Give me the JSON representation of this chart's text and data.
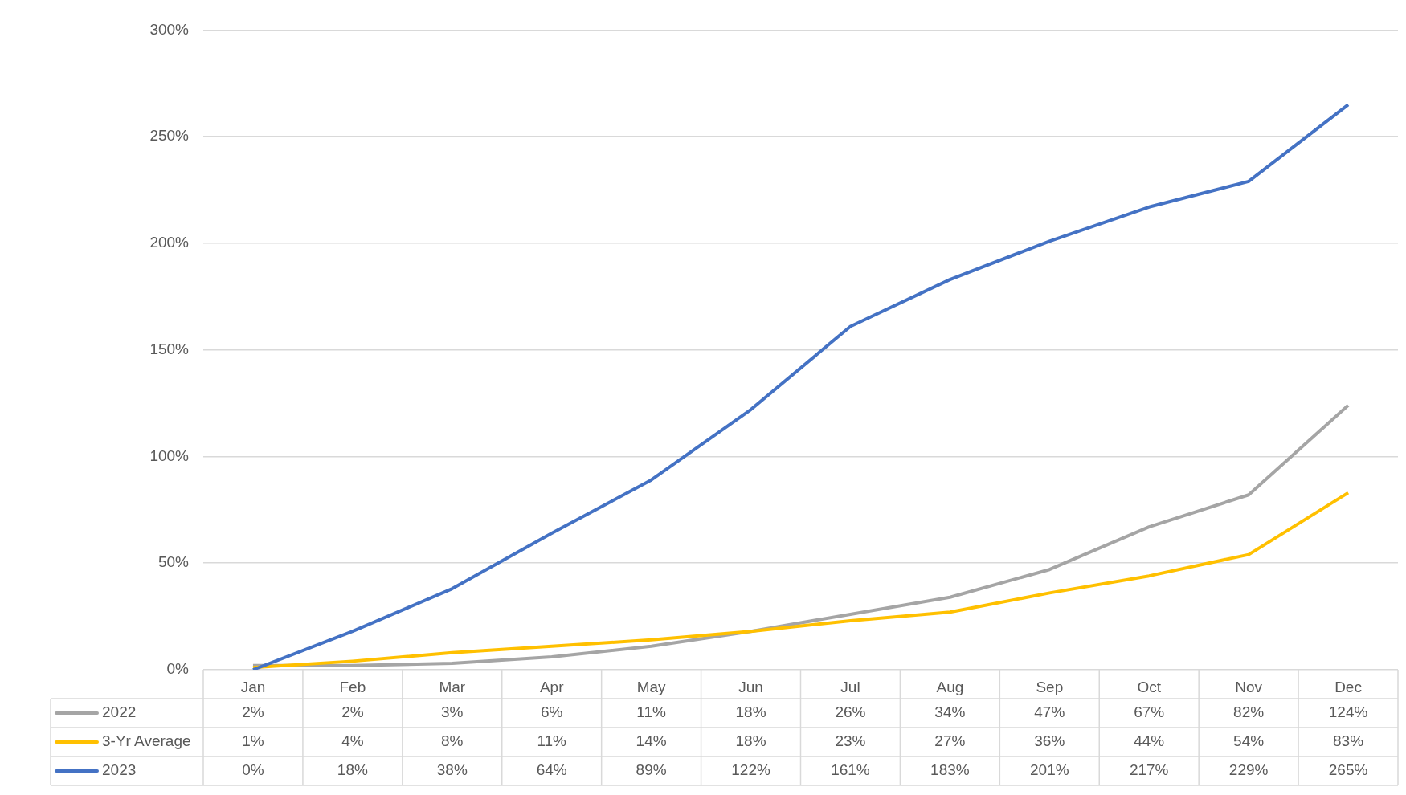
{
  "chart_data": {
    "type": "line",
    "categories": [
      "Jan",
      "Feb",
      "Mar",
      "Apr",
      "May",
      "Jun",
      "Jul",
      "Aug",
      "Sep",
      "Oct",
      "Nov",
      "Dec"
    ],
    "series": [
      {
        "name": "2022",
        "color": "#a5a5a5",
        "values": [
          2,
          2,
          3,
          6,
          11,
          18,
          26,
          34,
          47,
          67,
          82,
          124
        ],
        "value_labels": [
          "2%",
          "2%",
          "3%",
          "6%",
          "11%",
          "18%",
          "26%",
          "34%",
          "47%",
          "67%",
          "82%",
          "124%"
        ]
      },
      {
        "name": "3-Yr Average",
        "color": "#ffc000",
        "values": [
          1,
          4,
          8,
          11,
          14,
          18,
          23,
          27,
          36,
          44,
          54,
          83
        ],
        "value_labels": [
          "1%",
          "4%",
          "8%",
          "11%",
          "14%",
          "18%",
          "23%",
          "27%",
          "36%",
          "44%",
          "54%",
          "83%"
        ]
      },
      {
        "name": "2023",
        "color": "#4472c4",
        "values": [
          0,
          18,
          38,
          64,
          89,
          122,
          161,
          183,
          201,
          217,
          229,
          265
        ],
        "value_labels": [
          "0%",
          "18%",
          "38%",
          "64%",
          "89%",
          "122%",
          "161%",
          "183%",
          "201%",
          "217%",
          "229%",
          "265%"
        ]
      }
    ],
    "ylim": [
      0,
      300
    ],
    "yticks": [
      {
        "value": 0,
        "label": "0%"
      },
      {
        "value": 50,
        "label": "50%"
      },
      {
        "value": 100,
        "label": "100%"
      },
      {
        "value": 150,
        "label": "150%"
      },
      {
        "value": 200,
        "label": "200%"
      },
      {
        "value": 250,
        "label": "250%"
      },
      {
        "value": 300,
        "label": "300%"
      }
    ],
    "grid": "y",
    "legend": "bottom",
    "marker": "none",
    "line_style": "solid"
  }
}
